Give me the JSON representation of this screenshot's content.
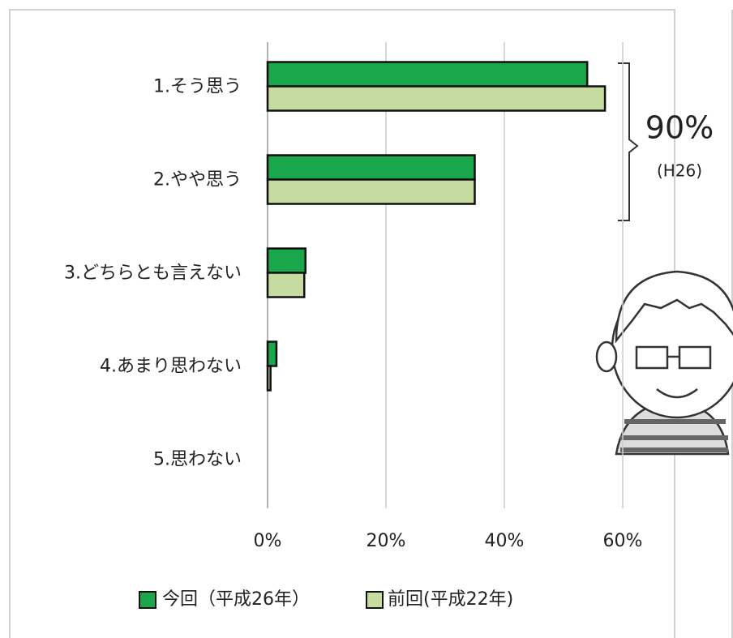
{
  "chart_data": {
    "type": "hbar",
    "categories": [
      "1.そう思う",
      "2.やや思う",
      "3.どちらとも言えない",
      "4.あまり思わない",
      "5.思わない"
    ],
    "series": [
      {
        "name": "今回（平成26年）",
        "color": "#1aa64a",
        "values": [
          54,
          35,
          6.4,
          1.5,
          0
        ]
      },
      {
        "name": "前回(平成22年)",
        "color": "#c5dba0",
        "values": [
          57,
          35,
          6.2,
          0.5,
          0
        ]
      }
    ],
    "xlim": [
      0,
      60
    ],
    "xticks": [
      {
        "value": 0,
        "label": "0%"
      },
      {
        "value": 20,
        "label": "20%"
      },
      {
        "value": 40,
        "label": "40%"
      },
      {
        "value": 60,
        "label": "60%"
      }
    ],
    "grid": true,
    "annotations": [
      "90%",
      "(H26)"
    ]
  }
}
